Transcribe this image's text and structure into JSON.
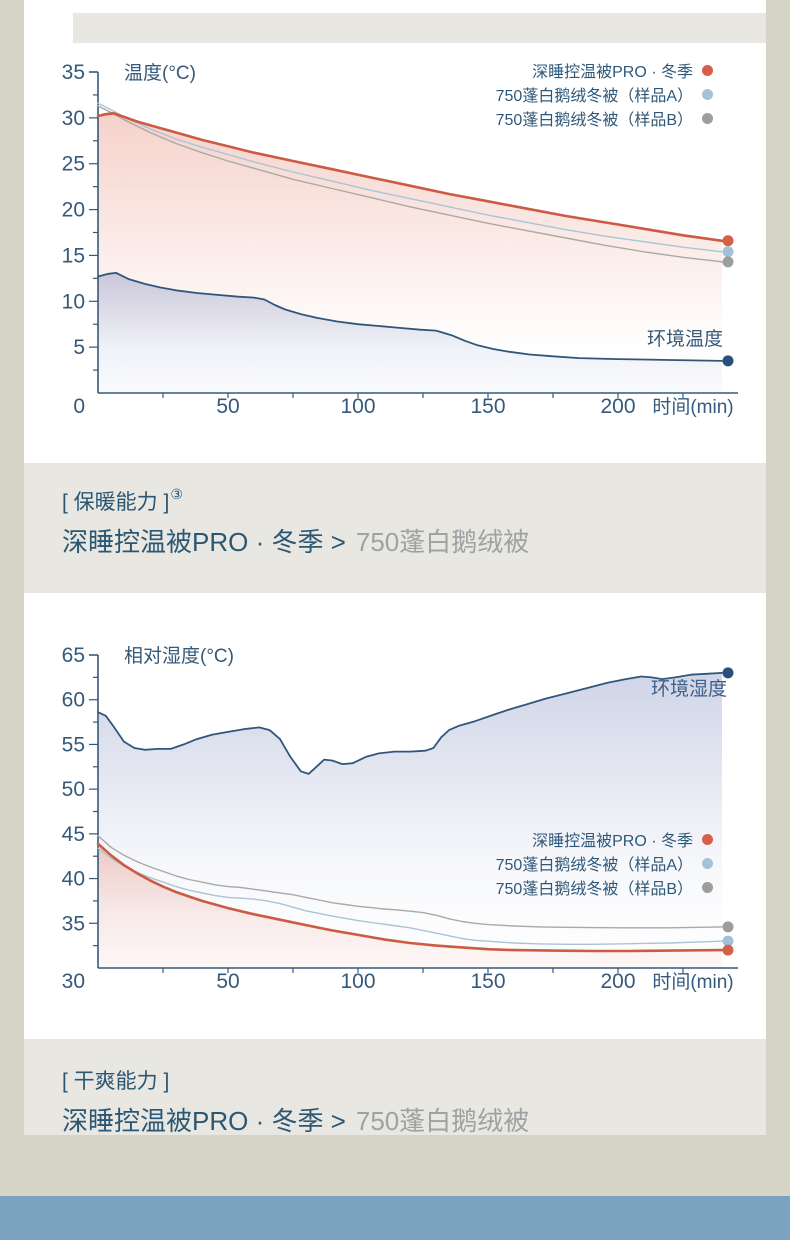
{
  "page": {
    "background_color": "#d6d4c7",
    "card_color": "#ffffff",
    "section_color": "#e8e7e2",
    "footer_band_color": "#7ba3bf",
    "accent_red": "#d5604a",
    "accent_blue": "#a5c3d8",
    "accent_gray": "#9d9d9b",
    "axis_color": "#35597b"
  },
  "chart_data": [
    {
      "type": "line",
      "y_axis_label": "温度(°C)",
      "x_axis_label": "时间(min)",
      "corner_label": "0",
      "ambient_label": "环境温度",
      "y_min": 0,
      "y_max": 35,
      "y_major": 5,
      "y_minor": 2.5,
      "x_max": 240,
      "x_ticks": [
        50,
        100,
        150,
        200
      ],
      "x_minor": 25,
      "legend": [
        {
          "label": "深睡控温被PRO · 冬季",
          "color": "#d5604a"
        },
        {
          "label": "750蓬白鹅绒冬被（样品A）",
          "color": "#a5c3d8"
        },
        {
          "label": "750蓬白鹅绒冬被（样品B）",
          "color": "#9d9d9b"
        }
      ],
      "series": [
        {
          "name": "750蓬白鹅绒冬被（样品A）",
          "color": "#a9c4d6",
          "width": 1.4,
          "dot": "#9fc2d8",
          "points": [
            [
              0,
              31.6
            ],
            [
              5,
              30.9
            ],
            [
              10,
              30.1
            ],
            [
              20,
              28.8
            ],
            [
              30,
              27.7
            ],
            [
              40,
              26.8
            ],
            [
              50,
              26.0
            ],
            [
              60,
              25.2
            ],
            [
              75,
              24.1
            ],
            [
              90,
              23.1
            ],
            [
              105,
              22.1
            ],
            [
              120,
              21.2
            ],
            [
              135,
              20.3
            ],
            [
              150,
              19.4
            ],
            [
              165,
              18.6
            ],
            [
              180,
              17.8
            ],
            [
              195,
              17.1
            ],
            [
              210,
              16.5
            ],
            [
              225,
              15.9
            ],
            [
              240,
              15.4
            ]
          ]
        },
        {
          "name": "750蓬白鹅绒冬被（样品B）",
          "color": "#a9a9a7",
          "width": 1.4,
          "dot": "#9d9d9b",
          "points": [
            [
              0,
              31.3
            ],
            [
              5,
              30.6
            ],
            [
              10,
              29.8
            ],
            [
              20,
              28.4
            ],
            [
              30,
              27.2
            ],
            [
              40,
              26.2
            ],
            [
              50,
              25.3
            ],
            [
              60,
              24.5
            ],
            [
              75,
              23.3
            ],
            [
              90,
              22.3
            ],
            [
              105,
              21.3
            ],
            [
              120,
              20.3
            ],
            [
              135,
              19.4
            ],
            [
              150,
              18.5
            ],
            [
              165,
              17.7
            ],
            [
              180,
              16.9
            ],
            [
              195,
              16.1
            ],
            [
              210,
              15.4
            ],
            [
              225,
              14.8
            ],
            [
              240,
              14.3
            ]
          ]
        },
        {
          "name": "深睡控温被PRO · 冬季",
          "color": "#cd5a43",
          "width": 2.6,
          "fill": "gradRed1",
          "dot": "#d5604a",
          "points": [
            [
              0,
              30.2
            ],
            [
              3,
              30.4
            ],
            [
              6,
              30.5
            ],
            [
              10,
              30.1
            ],
            [
              15,
              29.6
            ],
            [
              20,
              29.2
            ],
            [
              30,
              28.4
            ],
            [
              40,
              27.6
            ],
            [
              50,
              26.9
            ],
            [
              60,
              26.2
            ],
            [
              75,
              25.3
            ],
            [
              90,
              24.4
            ],
            [
              105,
              23.5
            ],
            [
              120,
              22.6
            ],
            [
              135,
              21.7
            ],
            [
              150,
              20.9
            ],
            [
              165,
              20.1
            ],
            [
              180,
              19.3
            ],
            [
              195,
              18.6
            ],
            [
              210,
              17.9
            ],
            [
              225,
              17.2
            ],
            [
              240,
              16.6
            ]
          ]
        },
        {
          "name": "环境温度",
          "color": "#30567c",
          "width": 1.8,
          "fill": "gradBlue1",
          "dot": "#27517b",
          "points": [
            [
              0,
              12.7
            ],
            [
              4,
              13.0
            ],
            [
              7,
              13.1
            ],
            [
              12,
              12.4
            ],
            [
              18,
              11.9
            ],
            [
              24,
              11.5
            ],
            [
              30,
              11.2
            ],
            [
              38,
              10.9
            ],
            [
              46,
              10.7
            ],
            [
              54,
              10.5
            ],
            [
              60,
              10.4
            ],
            [
              64,
              10.2
            ],
            [
              68,
              9.6
            ],
            [
              72,
              9.1
            ],
            [
              78,
              8.6
            ],
            [
              84,
              8.2
            ],
            [
              92,
              7.8
            ],
            [
              100,
              7.5
            ],
            [
              108,
              7.3
            ],
            [
              116,
              7.1
            ],
            [
              124,
              6.9
            ],
            [
              130,
              6.8
            ],
            [
              136,
              6.3
            ],
            [
              141,
              5.7
            ],
            [
              146,
              5.2
            ],
            [
              152,
              4.8
            ],
            [
              158,
              4.5
            ],
            [
              166,
              4.2
            ],
            [
              175,
              4.0
            ],
            [
              185,
              3.8
            ],
            [
              200,
              3.7
            ],
            [
              220,
              3.6
            ],
            [
              240,
              3.5
            ]
          ]
        }
      ]
    },
    {
      "type": "line",
      "y_axis_label": "相对湿度(°C)",
      "x_axis_label": "时间(min)",
      "corner_label": "30",
      "ambient_label": "环境湿度",
      "y_min": 30,
      "y_max": 65,
      "y_major": 5,
      "y_minor": 2.5,
      "x_max": 240,
      "x_ticks": [
        50,
        100,
        150,
        200
      ],
      "x_minor": 25,
      "legend": [
        {
          "label": "深睡控温被PRO · 冬季",
          "color": "#d5604a"
        },
        {
          "label": "750蓬白鹅绒冬被（样品A）",
          "color": "#a5c3d8"
        },
        {
          "label": "750蓬白鹅绒冬被（样品B）",
          "color": "#9d9d9b"
        }
      ],
      "series": [
        {
          "name": "750蓬白鹅绒冬被（样品A）",
          "color": "#a9c4d6",
          "width": 1.4,
          "dot": "#9fc2d8",
          "points": [
            [
              0,
              43.4
            ],
            [
              5,
              42.3
            ],
            [
              10,
              41.4
            ],
            [
              15,
              40.7
            ],
            [
              20,
              40.1
            ],
            [
              25,
              39.6
            ],
            [
              30,
              39.1
            ],
            [
              35,
              38.7
            ],
            [
              40,
              38.4
            ],
            [
              45,
              38.1
            ],
            [
              50,
              37.9
            ],
            [
              55,
              37.8
            ],
            [
              60,
              37.7
            ],
            [
              65,
              37.5
            ],
            [
              70,
              37.2
            ],
            [
              75,
              36.8
            ],
            [
              80,
              36.4
            ],
            [
              85,
              36.1
            ],
            [
              90,
              35.8
            ],
            [
              100,
              35.3
            ],
            [
              110,
              34.9
            ],
            [
              115,
              34.7
            ],
            [
              120,
              34.5
            ],
            [
              125,
              34.2
            ],
            [
              130,
              33.9
            ],
            [
              135,
              33.6
            ],
            [
              140,
              33.3
            ],
            [
              145,
              33.1
            ],
            [
              150,
              33.0
            ],
            [
              160,
              32.8
            ],
            [
              170,
              32.7
            ],
            [
              180,
              32.65
            ],
            [
              190,
              32.65
            ],
            [
              200,
              32.7
            ],
            [
              210,
              32.75
            ],
            [
              220,
              32.8
            ],
            [
              230,
              32.9
            ],
            [
              240,
              33.0
            ]
          ]
        },
        {
          "name": "750蓬白鹅绒冬被（样品B）",
          "color": "#a9a9a7",
          "width": 1.4,
          "dot": "#9d9d9b",
          "points": [
            [
              0,
              44.8
            ],
            [
              5,
              43.5
            ],
            [
              10,
              42.6
            ],
            [
              15,
              41.9
            ],
            [
              20,
              41.3
            ],
            [
              25,
              40.8
            ],
            [
              30,
              40.3
            ],
            [
              35,
              39.9
            ],
            [
              40,
              39.6
            ],
            [
              45,
              39.3
            ],
            [
              50,
              39.1
            ],
            [
              55,
              39.0
            ],
            [
              60,
              38.8
            ],
            [
              65,
              38.6
            ],
            [
              70,
              38.4
            ],
            [
              75,
              38.2
            ],
            [
              80,
              37.9
            ],
            [
              85,
              37.6
            ],
            [
              90,
              37.3
            ],
            [
              95,
              37.1
            ],
            [
              100,
              36.9
            ],
            [
              105,
              36.75
            ],
            [
              110,
              36.6
            ],
            [
              115,
              36.5
            ],
            [
              120,
              36.35
            ],
            [
              125,
              36.2
            ],
            [
              130,
              35.9
            ],
            [
              135,
              35.5
            ],
            [
              140,
              35.2
            ],
            [
              145,
              35.0
            ],
            [
              150,
              34.85
            ],
            [
              160,
              34.7
            ],
            [
              170,
              34.6
            ],
            [
              180,
              34.55
            ],
            [
              200,
              34.5
            ],
            [
              220,
              34.5
            ],
            [
              240,
              34.6
            ]
          ]
        },
        {
          "name": "深睡控温被PRO · 冬季",
          "color": "#cd5a43",
          "width": 2.6,
          "fill": "gradRed2",
          "dot": "#d5604a",
          "points": [
            [
              0,
              43.9
            ],
            [
              5,
              42.6
            ],
            [
              10,
              41.5
            ],
            [
              15,
              40.6
            ],
            [
              20,
              39.8
            ],
            [
              25,
              39.1
            ],
            [
              30,
              38.5
            ],
            [
              35,
              38.0
            ],
            [
              40,
              37.5
            ],
            [
              50,
              36.7
            ],
            [
              60,
              36.0
            ],
            [
              70,
              35.4
            ],
            [
              80,
              34.8
            ],
            [
              90,
              34.2
            ],
            [
              100,
              33.7
            ],
            [
              110,
              33.2
            ],
            [
              120,
              32.8
            ],
            [
              130,
              32.5
            ],
            [
              140,
              32.3
            ],
            [
              150,
              32.1
            ],
            [
              160,
              32.0
            ],
            [
              175,
              31.95
            ],
            [
              190,
              31.9
            ],
            [
              205,
              31.9
            ],
            [
              220,
              31.95
            ],
            [
              240,
              32.0
            ]
          ]
        },
        {
          "name": "环境湿度",
          "color": "#30567c",
          "width": 1.8,
          "fill": "gradBlue2",
          "dot": "#27517b",
          "points": [
            [
              0,
              58.6
            ],
            [
              3,
              58.2
            ],
            [
              6,
              57.0
            ],
            [
              10,
              55.3
            ],
            [
              14,
              54.6
            ],
            [
              18,
              54.4
            ],
            [
              23,
              54.5
            ],
            [
              28,
              54.5
            ],
            [
              33,
              55.0
            ],
            [
              38,
              55.6
            ],
            [
              44,
              56.1
            ],
            [
              50,
              56.4
            ],
            [
              56,
              56.7
            ],
            [
              62,
              56.9
            ],
            [
              66,
              56.6
            ],
            [
              70,
              55.6
            ],
            [
              74,
              53.6
            ],
            [
              78,
              52.0
            ],
            [
              81,
              51.7
            ],
            [
              84,
              52.5
            ],
            [
              87,
              53.3
            ],
            [
              90,
              53.2
            ],
            [
              94,
              52.8
            ],
            [
              98,
              52.9
            ],
            [
              103,
              53.6
            ],
            [
              108,
              54.0
            ],
            [
              114,
              54.2
            ],
            [
              120,
              54.2
            ],
            [
              126,
              54.3
            ],
            [
              129,
              54.6
            ],
            [
              132,
              55.8
            ],
            [
              135,
              56.6
            ],
            [
              139,
              57.1
            ],
            [
              145,
              57.6
            ],
            [
              152,
              58.3
            ],
            [
              158,
              58.9
            ],
            [
              165,
              59.5
            ],
            [
              172,
              60.1
            ],
            [
              180,
              60.7
            ],
            [
              188,
              61.3
            ],
            [
              196,
              61.9
            ],
            [
              203,
              62.3
            ],
            [
              209,
              62.6
            ],
            [
              213,
              62.5
            ],
            [
              217,
              62.3
            ],
            [
              222,
              62.5
            ],
            [
              228,
              62.8
            ],
            [
              234,
              62.9
            ],
            [
              240,
              63.0
            ]
          ]
        }
      ]
    }
  ],
  "sections": [
    {
      "tag": "[ 保暖能力 ]",
      "sup": "③",
      "claim_left": "深睡控温被PRO · 冬季 >",
      "claim_right": "750蓬白鹅绒被"
    },
    {
      "tag": "[ 干爽能力 ]",
      "sup": "",
      "claim_left": "深睡控温被PRO · 冬季 >",
      "claim_right": "750蓬白鹅绒被"
    }
  ]
}
